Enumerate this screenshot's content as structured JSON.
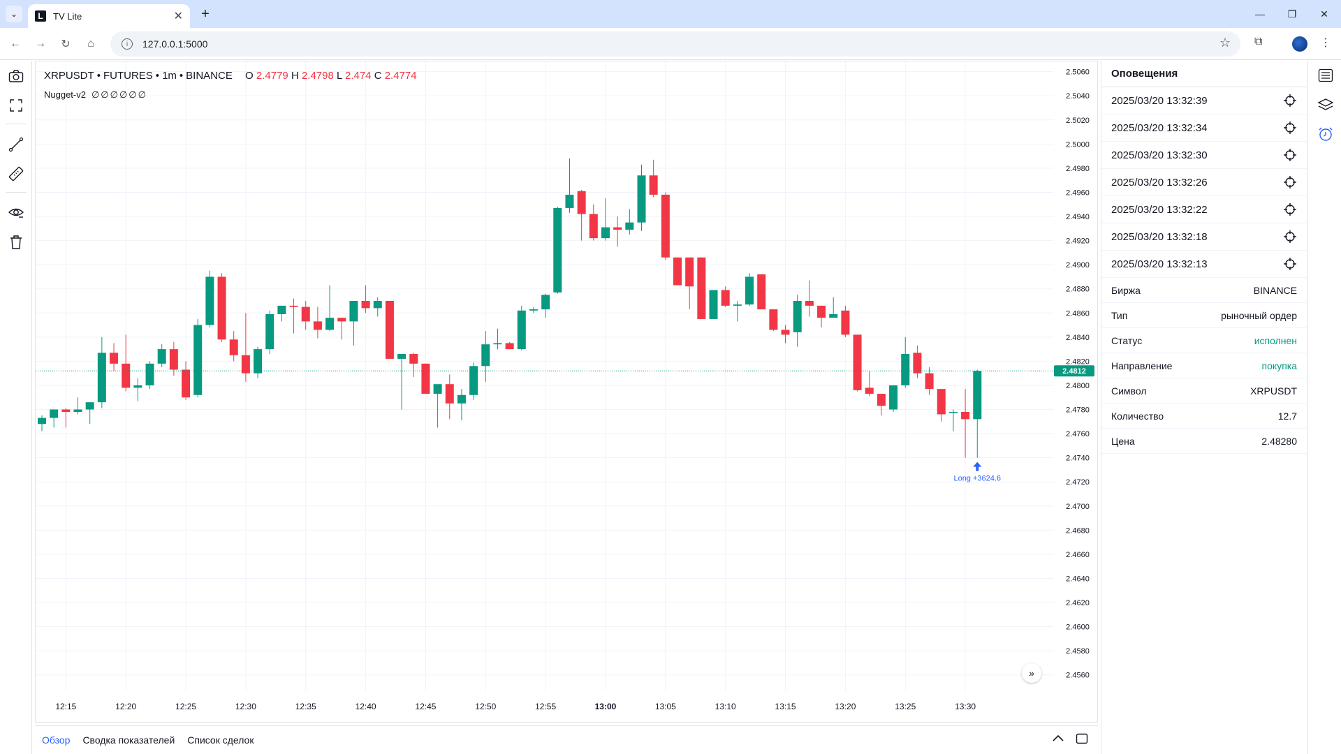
{
  "browser": {
    "tab_title": "TV Lite",
    "tab_favicon": "L",
    "url": "127.0.0.1:5000"
  },
  "legend": {
    "symbol": "XRPUSDT",
    "market": "FUTURES",
    "interval": "1m",
    "exchange": "BINANCE",
    "o_label": "O",
    "o_value": "2.4779",
    "h_label": "H",
    "h_value": "2.4798",
    "l_label": "L",
    "l_value": "2.474",
    "c_label": "C",
    "c_value": "2.4774"
  },
  "indicator": {
    "name": "Nugget-v2",
    "values": "∅∅∅∅∅∅"
  },
  "bottom_tabs": [
    "Обзор",
    "Сводка показателей",
    "Список сделок"
  ],
  "alerts": {
    "title": "Оповещения",
    "items": [
      "2025/03/20 13:32:39",
      "2025/03/20 13:32:34",
      "2025/03/20 13:32:30",
      "2025/03/20 13:32:26",
      "2025/03/20 13:32:22",
      "2025/03/20 13:32:18",
      "2025/03/20 13:32:13"
    ],
    "details": [
      {
        "key": "Биржа",
        "value": "BINANCE"
      },
      {
        "key": "Тип",
        "value": "рыночный ордер"
      },
      {
        "key": "Статус",
        "value": "исполнен"
      },
      {
        "key": "Направление",
        "value": "покупка"
      },
      {
        "key": "Символ",
        "value": "XRPUSDT"
      },
      {
        "key": "Количество",
        "value": "12.7"
      },
      {
        "key": "Цена",
        "value": "2.48280"
      }
    ]
  },
  "colors": {
    "up": "#089981",
    "down": "#f23645",
    "accent": "#2962ff"
  },
  "chart_data": {
    "type": "candlestick",
    "ylim": [
      2.455,
      2.5065
    ],
    "y_ticks": [
      "2.5060",
      "2.5040",
      "2.5020",
      "2.5000",
      "2.4980",
      "2.4960",
      "2.4940",
      "2.4920",
      "2.4900",
      "2.4880",
      "2.4860",
      "2.4840",
      "2.4820",
      "2.4800",
      "2.4780",
      "2.4760",
      "2.4740",
      "2.4720",
      "2.4700",
      "2.4680",
      "2.4660",
      "2.4640",
      "2.4620",
      "2.4600",
      "2.4580",
      "2.4560"
    ],
    "x_ticks": [
      {
        "label": "12:15",
        "index": 2
      },
      {
        "label": "12:20",
        "index": 7
      },
      {
        "label": "12:25",
        "index": 12
      },
      {
        "label": "12:30",
        "index": 17
      },
      {
        "label": "12:35",
        "index": 22
      },
      {
        "label": "12:40",
        "index": 27
      },
      {
        "label": "12:45",
        "index": 32
      },
      {
        "label": "12:50",
        "index": 37
      },
      {
        "label": "12:55",
        "index": 42
      },
      {
        "label": "13:00",
        "index": 47,
        "bold": true
      },
      {
        "label": "13:05",
        "index": 52
      },
      {
        "label": "13:10",
        "index": 57
      },
      {
        "label": "13:15",
        "index": 62
      },
      {
        "label": "13:20",
        "index": 67
      },
      {
        "label": "13:25",
        "index": 72
      },
      {
        "label": "13:30",
        "index": 77
      }
    ],
    "last_price": "2.4812",
    "last_price_value": 2.4812,
    "marker": {
      "index": 78,
      "label": "Long +3624.6",
      "price": 2.474
    },
    "candles": [
      [
        2.4768,
        2.4775,
        2.4773,
        2.4762
      ],
      [
        2.4773,
        2.478,
        2.478,
        2.4765
      ],
      [
        2.478,
        2.4781,
        2.4778,
        2.4765
      ],
      [
        2.4778,
        2.479,
        2.478,
        2.4776
      ],
      [
        2.478,
        2.4784,
        2.4786,
        2.4768
      ],
      [
        2.4786,
        2.484,
        2.4827,
        2.4781
      ],
      [
        2.4827,
        2.4835,
        2.4818,
        2.4812
      ],
      [
        2.4818,
        2.4842,
        2.4798,
        2.4795
      ],
      [
        2.4798,
        2.4806,
        2.48,
        2.4787
      ],
      [
        2.48,
        2.482,
        2.4818,
        2.4797
      ],
      [
        2.4818,
        2.4834,
        2.483,
        2.4815
      ],
      [
        2.483,
        2.4836,
        2.4813,
        2.4808
      ],
      [
        2.4813,
        2.482,
        2.479,
        2.4788
      ],
      [
        2.4792,
        2.4855,
        2.485,
        2.479
      ],
      [
        2.485,
        2.4895,
        2.489,
        2.4848
      ],
      [
        2.489,
        2.4893,
        2.4838,
        2.4836
      ],
      [
        2.4838,
        2.4845,
        2.4825,
        2.482
      ],
      [
        2.4825,
        2.486,
        2.481,
        2.4803
      ],
      [
        2.481,
        2.4832,
        2.483,
        2.4806
      ],
      [
        2.483,
        2.4862,
        2.4859,
        2.4826
      ],
      [
        2.4859,
        2.4866,
        2.4866,
        2.4853
      ],
      [
        2.4866,
        2.4872,
        2.4865,
        2.4843
      ],
      [
        2.4865,
        2.487,
        2.4853,
        2.4846
      ],
      [
        2.4853,
        2.4865,
        2.4846,
        2.4839
      ],
      [
        2.4846,
        2.4883,
        2.4856,
        2.4845
      ],
      [
        2.4856,
        2.4855,
        2.4853,
        2.4838
      ],
      [
        2.4853,
        2.487,
        2.487,
        2.4833
      ],
      [
        2.487,
        2.4883,
        2.4864,
        2.486
      ],
      [
        2.4864,
        2.4873,
        2.487,
        2.4857
      ],
      [
        2.487,
        2.487,
        2.4822,
        2.4822
      ],
      [
        2.4822,
        2.4825,
        2.4826,
        2.478
      ],
      [
        2.4826,
        2.4827,
        2.4818,
        2.4807
      ],
      [
        2.4818,
        2.4818,
        2.4793,
        2.4793
      ],
      [
        2.4793,
        2.48,
        2.4801,
        2.4765
      ],
      [
        2.4801,
        2.4809,
        2.4785,
        2.4772
      ],
      [
        2.4785,
        2.4797,
        2.4792,
        2.4771
      ],
      [
        2.4792,
        2.4819,
        2.4816,
        2.4788
      ],
      [
        2.4816,
        2.4845,
        2.4834,
        2.4803
      ],
      [
        2.4834,
        2.4847,
        2.4835,
        2.483
      ],
      [
        2.4835,
        2.4836,
        2.483,
        2.483
      ],
      [
        2.483,
        2.4866,
        2.4862,
        2.4829
      ],
      [
        2.4862,
        2.4865,
        2.4863,
        2.486
      ],
      [
        2.4863,
        2.4876,
        2.4875,
        2.4856
      ],
      [
        2.4877,
        2.4948,
        2.4947,
        2.4876
      ],
      [
        2.4947,
        2.4988,
        2.4958,
        2.4943
      ],
      [
        2.4961,
        2.4962,
        2.4942,
        2.492
      ],
      [
        2.4942,
        2.495,
        2.4922,
        2.492
      ],
      [
        2.4922,
        2.4955,
        2.4931,
        2.492
      ],
      [
        2.4931,
        2.494,
        2.4929,
        2.4915
      ],
      [
        2.4929,
        2.4946,
        2.4935,
        2.4925
      ],
      [
        2.4935,
        2.4983,
        2.4974,
        2.4928
      ],
      [
        2.4974,
        2.4987,
        2.4958,
        2.4956
      ],
      [
        2.4958,
        2.496,
        2.4906,
        2.4904
      ],
      [
        2.4906,
        2.4906,
        2.4883,
        2.4883
      ],
      [
        2.4906,
        2.4906,
        2.4882,
        2.4863
      ],
      [
        2.4906,
        2.4906,
        2.4855,
        2.4855
      ],
      [
        2.4855,
        2.4877,
        2.4879,
        2.4855
      ],
      [
        2.4879,
        2.4882,
        2.4866,
        2.4865
      ],
      [
        2.4866,
        2.487,
        2.4867,
        2.4853
      ],
      [
        2.4867,
        2.4893,
        2.489,
        2.4866
      ],
      [
        2.4892,
        2.4892,
        2.4863,
        2.4863
      ],
      [
        2.4863,
        2.4863,
        2.4846,
        2.4845
      ],
      [
        2.4846,
        2.485,
        2.4842,
        2.4835
      ],
      [
        2.4844,
        2.4875,
        2.487,
        2.4832
      ],
      [
        2.487,
        2.4887,
        2.4866,
        2.4857
      ],
      [
        2.4866,
        2.4866,
        2.4856,
        2.4848
      ],
      [
        2.4856,
        2.4873,
        2.4859,
        2.4856
      ],
      [
        2.4862,
        2.4866,
        2.4842,
        2.484
      ],
      [
        2.4842,
        2.4842,
        2.4796,
        2.4795
      ],
      [
        2.4798,
        2.4812,
        2.4793,
        2.4791
      ],
      [
        2.4793,
        2.4793,
        2.4783,
        2.4775
      ],
      [
        2.478,
        2.48,
        2.48,
        2.4778
      ],
      [
        2.48,
        2.484,
        2.4826,
        2.4798
      ],
      [
        2.4827,
        2.4833,
        2.481,
        2.4806
      ],
      [
        2.481,
        2.4815,
        2.4797,
        2.4792
      ],
      [
        2.4797,
        2.4797,
        2.4776,
        2.477
      ],
      [
        2.4778,
        2.478,
        2.4778,
        2.4762
      ],
      [
        2.4778,
        2.4797,
        2.4772,
        2.474
      ],
      [
        2.4772,
        2.4813,
        2.4812,
        2.474
      ]
    ]
  }
}
